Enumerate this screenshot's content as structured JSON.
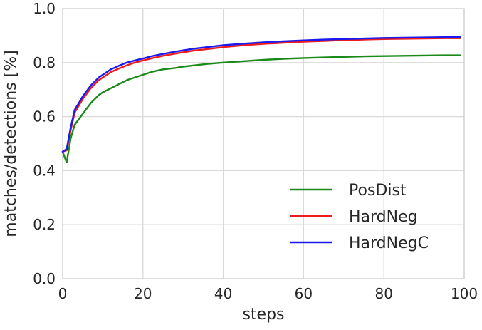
{
  "chart_data": {
    "type": "line",
    "title": "",
    "xlabel": "steps",
    "ylabel": "matches/detections [%]",
    "xlim": [
      0,
      100
    ],
    "ylim": [
      0.0,
      1.0
    ],
    "x_ticks": [
      "0",
      "20",
      "40",
      "60",
      "80",
      "100"
    ],
    "y_ticks": [
      "0.0",
      "0.2",
      "0.4",
      "0.6",
      "0.8",
      "1.0"
    ],
    "grid": true,
    "legend_position": "lower-right",
    "x": [
      0,
      1,
      2,
      3,
      4,
      5,
      6,
      7,
      8,
      9,
      10,
      12,
      14,
      16,
      18,
      20,
      22,
      25,
      28,
      30,
      33,
      36,
      40,
      45,
      50,
      55,
      60,
      65,
      70,
      75,
      80,
      85,
      90,
      95,
      99
    ],
    "series": [
      {
        "name": "PosDist",
        "color": "#1a8a1a",
        "values": [
          0.47,
          0.43,
          0.52,
          0.57,
          0.59,
          0.61,
          0.63,
          0.65,
          0.665,
          0.68,
          0.69,
          0.705,
          0.72,
          0.735,
          0.745,
          0.755,
          0.765,
          0.775,
          0.78,
          0.785,
          0.79,
          0.795,
          0.8,
          0.805,
          0.81,
          0.814,
          0.817,
          0.819,
          0.821,
          0.823,
          0.824,
          0.825,
          0.826,
          0.827,
          0.827
        ]
      },
      {
        "name": "HardNeg",
        "color": "#ee1c1c",
        "values": [
          0.47,
          0.475,
          0.55,
          0.615,
          0.64,
          0.665,
          0.685,
          0.705,
          0.72,
          0.735,
          0.745,
          0.765,
          0.778,
          0.79,
          0.8,
          0.808,
          0.815,
          0.825,
          0.833,
          0.838,
          0.845,
          0.85,
          0.857,
          0.864,
          0.869,
          0.873,
          0.877,
          0.88,
          0.883,
          0.885,
          0.887,
          0.888,
          0.889,
          0.89,
          0.89
        ]
      },
      {
        "name": "HardNegC",
        "color": "#1a1aee",
        "values": [
          0.47,
          0.48,
          0.56,
          0.625,
          0.65,
          0.675,
          0.695,
          0.715,
          0.73,
          0.745,
          0.755,
          0.775,
          0.788,
          0.8,
          0.808,
          0.815,
          0.823,
          0.832,
          0.84,
          0.845,
          0.852,
          0.857,
          0.864,
          0.87,
          0.875,
          0.879,
          0.882,
          0.885,
          0.887,
          0.889,
          0.891,
          0.892,
          0.893,
          0.894,
          0.894
        ]
      }
    ]
  }
}
